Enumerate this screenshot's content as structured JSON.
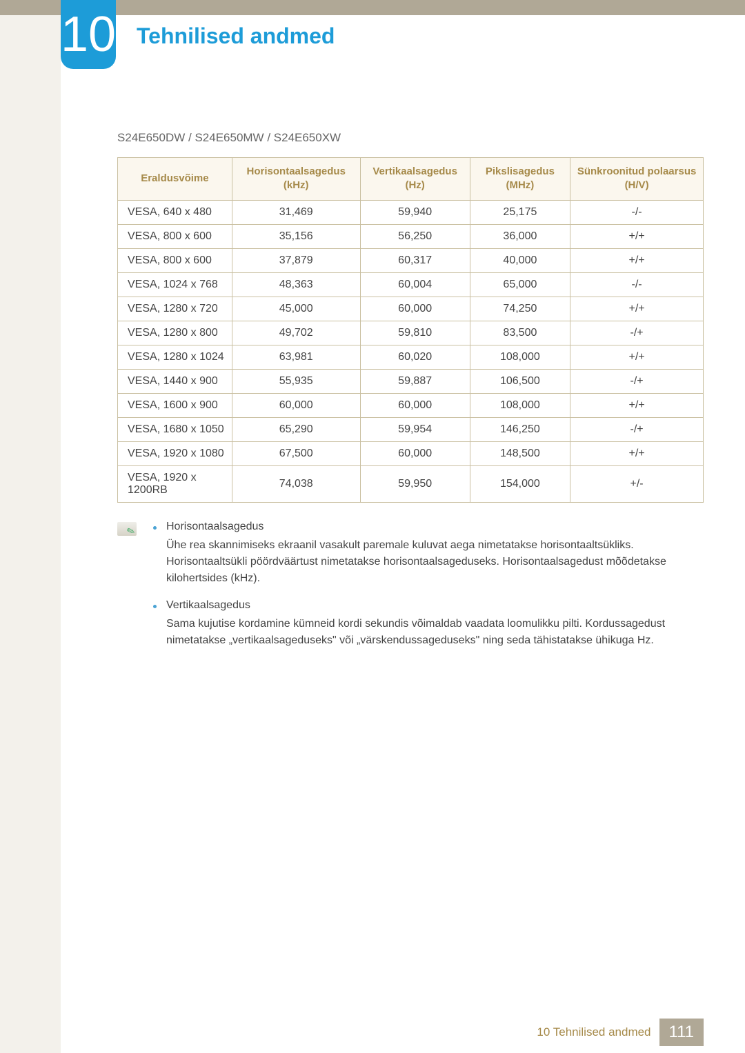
{
  "chapter_number": "10",
  "page_title": "Tehnilised andmed",
  "subtitle": "S24E650DW / S24E650MW / S24E650XW",
  "colors": {
    "accent_blue": "#1d9cd8",
    "header_gold": "#a68a4a",
    "header_bg": "#fbf7ee",
    "border": "#c9bfa0",
    "top_bar": "#b0a896",
    "left_strip": "#f3f1eb"
  },
  "table": {
    "columns": [
      "Eraldusvõime",
      "Horisontaalsagedus (kHz)",
      "Vertikaalsagedus (Hz)",
      "Pikslisagedus (MHz)",
      "Sünkroonitud polaarsus (H/V)"
    ],
    "rows": [
      [
        "VESA, 640 x 480",
        "31,469",
        "59,940",
        "25,175",
        "-/-"
      ],
      [
        "VESA, 800 x 600",
        "35,156",
        "56,250",
        "36,000",
        "+/+"
      ],
      [
        "VESA, 800 x 600",
        "37,879",
        "60,317",
        "40,000",
        "+/+"
      ],
      [
        "VESA, 1024 x 768",
        "48,363",
        "60,004",
        "65,000",
        "-/-"
      ],
      [
        "VESA, 1280 x 720",
        "45,000",
        "60,000",
        "74,250",
        "+/+"
      ],
      [
        "VESA, 1280 x 800",
        "49,702",
        "59,810",
        "83,500",
        "-/+"
      ],
      [
        "VESA, 1280 x 1024",
        "63,981",
        "60,020",
        "108,000",
        "+/+"
      ],
      [
        "VESA, 1440 x 900",
        "55,935",
        "59,887",
        "106,500",
        "-/+"
      ],
      [
        "VESA, 1600 x 900",
        "60,000",
        "60,000",
        "108,000",
        "+/+"
      ],
      [
        "VESA, 1680 x 1050",
        "65,290",
        "59,954",
        "146,250",
        "-/+"
      ],
      [
        "VESA, 1920 x 1080",
        "67,500",
        "60,000",
        "148,500",
        "+/+"
      ],
      [
        "VESA, 1920 x 1200RB",
        "74,038",
        "59,950",
        "154,000",
        "+/-"
      ]
    ]
  },
  "notes": [
    {
      "title": "Horisontaalsagedus",
      "body": "Ühe rea skannimiseks ekraanil vasakult paremale kuluvat aega nimetatakse horisontaaltsükliks. Horisontaaltsükli pöördväärtust nimetatakse horisontaalsageduseks. Horisontaalsagedust mõõdetakse kilohertsides (kHz)."
    },
    {
      "title": "Vertikaalsagedus",
      "body": "Sama kujutise kordamine kümneid kordi sekundis võimaldab vaadata loomulikku pilti. Kordussagedust nimetatakse „vertikaalsageduseks\" või „värskendussageduseks\" ning seda tähistatakse ühikuga Hz."
    }
  ],
  "footer": {
    "label": "10 Tehnilised andmed",
    "page": "111"
  }
}
